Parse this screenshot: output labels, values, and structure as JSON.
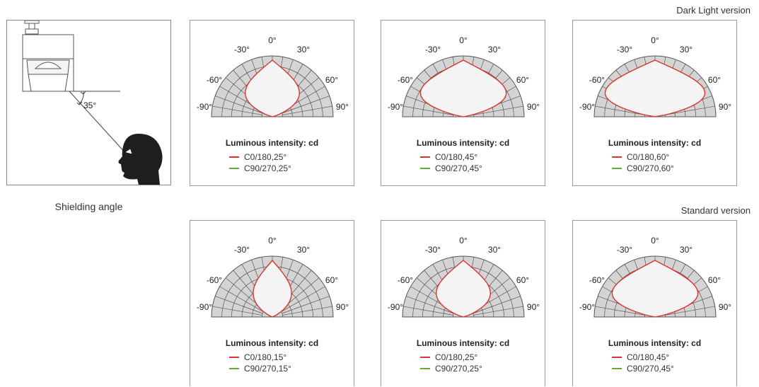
{
  "sections": {
    "dark_light": "Dark Light version",
    "standard": "Standard version"
  },
  "shielding": {
    "angle_label": "35°",
    "caption": "Shielding angle"
  },
  "polar": {
    "angle_labels": [
      "0°",
      "-30°",
      "30°",
      "-60°",
      "60°",
      "-90°",
      "90°"
    ],
    "legend_title": "Luminous intensity: cd"
  },
  "colors": {
    "c0_180": "#d9352a",
    "c90_270": "#5cb034",
    "grid_fill": "#d4d4d4",
    "grid_line": "#555555"
  },
  "panels": [
    {
      "group": "dark_light",
      "beam_deg": 25,
      "legend": [
        "C0/180,25°",
        "C90/270,25°"
      ]
    },
    {
      "group": "dark_light",
      "beam_deg": 45,
      "legend": [
        "C0/180,45°",
        "C90/270,45°"
      ]
    },
    {
      "group": "dark_light",
      "beam_deg": 60,
      "legend": [
        "C0/180,60°",
        "C90/270,60°"
      ]
    },
    {
      "group": "standard",
      "beam_deg": 15,
      "legend": [
        "C0/180,15°",
        "C90/270,15°"
      ]
    },
    {
      "group": "standard",
      "beam_deg": 25,
      "legend": [
        "C0/180,25°",
        "C90/270,25°"
      ]
    },
    {
      "group": "standard",
      "beam_deg": 45,
      "legend": [
        "C0/180,45°",
        "C90/270,45°"
      ]
    }
  ]
}
